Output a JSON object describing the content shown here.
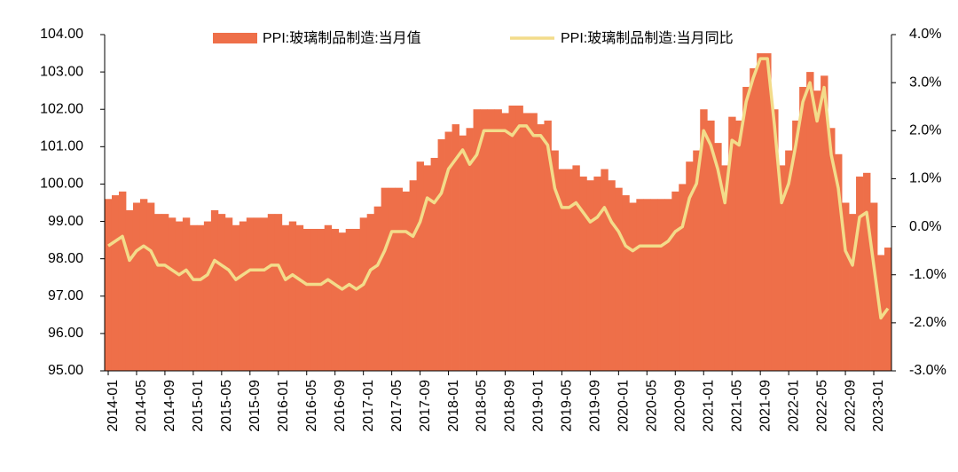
{
  "chart_data": {
    "type": "bar_line",
    "categories": [
      "2014-01",
      null,
      null,
      null,
      "2014-05",
      null,
      null,
      null,
      "2014-09",
      null,
      null,
      null,
      "2015-01",
      null,
      null,
      null,
      "2015-05",
      null,
      null,
      null,
      "2015-09",
      null,
      null,
      null,
      "2016-01",
      null,
      null,
      null,
      "2016-05",
      null,
      null,
      null,
      "2016-09",
      null,
      null,
      null,
      "2017-01",
      null,
      null,
      null,
      "2017-05",
      null,
      null,
      null,
      "2017-09",
      null,
      null,
      null,
      "2018-01",
      null,
      null,
      null,
      "2018-05",
      null,
      null,
      null,
      "2018-09",
      null,
      null,
      null,
      "2019-01",
      null,
      null,
      null,
      "2019-05",
      null,
      null,
      null,
      "2019-09",
      null,
      null,
      null,
      "2020-01",
      null,
      null,
      null,
      "2020-05",
      null,
      null,
      null,
      "2020-09",
      null,
      null,
      null,
      "2021-01",
      null,
      null,
      null,
      "2021-05",
      null,
      null,
      null,
      "2021-09",
      null,
      null,
      null,
      "2022-01",
      null,
      null,
      null,
      "2022-05",
      null,
      null,
      null,
      "2022-09",
      null,
      null,
      null,
      "2023-01",
      null,
      null
    ],
    "series": [
      {
        "name": "PPI:玻璃制品制造:当月值",
        "color": "#ee6f49",
        "axis": "y",
        "values": [
          99.6,
          99.7,
          99.8,
          99.3,
          99.5,
          99.6,
          99.5,
          99.2,
          99.2,
          99.1,
          99.0,
          99.1,
          98.9,
          98.9,
          99.0,
          99.3,
          99.2,
          99.1,
          98.9,
          99.0,
          99.1,
          99.1,
          99.1,
          99.2,
          99.2,
          98.9,
          99.0,
          98.9,
          98.8,
          98.8,
          98.8,
          98.9,
          98.8,
          98.7,
          98.8,
          98.8,
          99.1,
          99.2,
          99.4,
          99.9,
          99.9,
          99.9,
          99.8,
          100.1,
          100.6,
          100.5,
          100.7,
          101.2,
          101.4,
          101.6,
          101.3,
          101.5,
          102.0,
          102.0,
          102.0,
          102.0,
          101.9,
          102.1,
          102.1,
          101.9,
          101.9,
          101.6,
          101.7,
          100.9,
          100.4,
          100.4,
          100.5,
          100.2,
          100.1,
          100.2,
          100.4,
          100.1,
          99.9,
          99.7,
          99.5,
          99.6,
          99.6,
          99.6,
          99.6,
          99.6,
          99.8,
          100.0,
          100.6,
          100.9,
          102.0,
          101.7,
          101.1,
          100.5,
          101.8,
          101.7,
          102.6,
          103.1,
          103.5,
          103.5,
          102.0,
          100.5,
          100.9,
          101.7,
          102.6,
          103.0,
          102.5,
          102.9,
          101.5,
          100.8,
          99.5,
          99.2,
          100.2,
          100.3,
          99.5,
          98.1,
          98.3
        ]
      },
      {
        "name": "PPI:玻璃制品制造:当月同比",
        "color": "#f3dc8a",
        "axis": "y2",
        "values": [
          -0.4,
          -0.3,
          -0.2,
          -0.7,
          -0.5,
          -0.4,
          -0.5,
          -0.8,
          -0.8,
          -0.9,
          -1.0,
          -0.9,
          -1.1,
          -1.1,
          -1.0,
          -0.7,
          -0.8,
          -0.9,
          -1.1,
          -1.0,
          -0.9,
          -0.9,
          -0.9,
          -0.8,
          -0.8,
          -1.1,
          -1.0,
          -1.1,
          -1.2,
          -1.2,
          -1.2,
          -1.1,
          -1.2,
          -1.3,
          -1.2,
          -1.3,
          -1.2,
          -0.9,
          -0.8,
          -0.5,
          -0.1,
          -0.1,
          -0.1,
          -0.2,
          0.1,
          0.6,
          0.5,
          0.7,
          1.2,
          1.4,
          1.6,
          1.3,
          1.5,
          2.0,
          2.0,
          2.0,
          2.0,
          1.9,
          2.1,
          2.1,
          1.9,
          1.9,
          1.7,
          0.8,
          0.4,
          0.4,
          0.5,
          0.3,
          0.1,
          0.2,
          0.4,
          0.1,
          -0.1,
          -0.4,
          -0.5,
          -0.4,
          -0.4,
          -0.4,
          -0.4,
          -0.3,
          -0.1,
          0.0,
          0.6,
          0.9,
          2.0,
          1.7,
          1.2,
          0.5,
          1.8,
          1.7,
          2.6,
          3.1,
          3.5,
          3.5,
          2.1,
          0.5,
          0.9,
          1.7,
          2.6,
          3.0,
          2.2,
          2.9,
          1.5,
          0.8,
          -0.5,
          -0.8,
          0.2,
          0.3,
          -0.8,
          -1.9,
          -1.7
        ]
      }
    ],
    "ylim": [
      95,
      104
    ],
    "yticks": [
      {
        "value": 95,
        "label": "95.00"
      },
      {
        "value": 96,
        "label": "96.00"
      },
      {
        "value": 97,
        "label": "97.00"
      },
      {
        "value": 98,
        "label": "98.00"
      },
      {
        "value": 99,
        "label": "99.00"
      },
      {
        "value": 100,
        "label": "100.00"
      },
      {
        "value": 101,
        "label": "101.00"
      },
      {
        "value": 102,
        "label": "102.00"
      },
      {
        "value": 103,
        "label": "103.00"
      },
      {
        "value": 104,
        "label": "104.00"
      }
    ],
    "y2lim": [
      -3,
      4
    ],
    "y2ticks": [
      {
        "value": -3,
        "label": "-3.0%"
      },
      {
        "value": -2,
        "label": "-2.0%"
      },
      {
        "value": -1,
        "label": "-1.0%"
      },
      {
        "value": 0,
        "label": "0.0%"
      },
      {
        "value": 1,
        "label": "1.0%"
      },
      {
        "value": 2,
        "label": "2.0%"
      },
      {
        "value": 3,
        "label": "3.0%"
      },
      {
        "value": 4,
        "label": "4.0%"
      }
    ],
    "legend": "top"
  }
}
